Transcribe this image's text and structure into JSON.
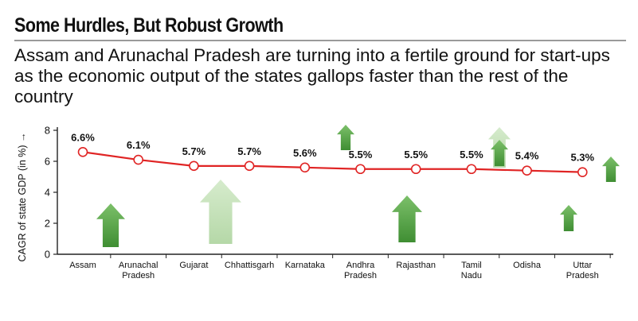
{
  "header": {
    "title": "Some Hurdles, But Robust Growth",
    "subtitle": "Assam and Arunachal Pradesh are turning into a fertile ground for start-ups as the economic output of the states gallops faster than the rest of the country"
  },
  "chart_data": {
    "type": "line",
    "title": "Some Hurdles, But Robust Growth",
    "ylabel": "CAGR of state GDP (in %) →",
    "xlabel": "",
    "ylim": [
      0,
      8
    ],
    "yticks": [
      "0",
      "2",
      "4",
      "6",
      "8"
    ],
    "categories": [
      [
        "Assam"
      ],
      [
        "Arunachal",
        "Pradesh"
      ],
      [
        "Gujarat"
      ],
      [
        "Chhattisgarh"
      ],
      [
        "Karnataka"
      ],
      [
        "Andhra",
        "Pradesh"
      ],
      [
        "Rajasthan"
      ],
      [
        "Tamil",
        "Nadu"
      ],
      [
        "Odisha"
      ],
      [
        "Uttar",
        "Pradesh"
      ]
    ],
    "values": [
      6.6,
      6.1,
      5.7,
      5.7,
      5.6,
      5.5,
      5.5,
      5.5,
      5.4,
      5.3
    ],
    "data_labels": [
      "6.6%",
      "6.1%",
      "5.7%",
      "5.7%",
      "5.6%",
      "5.5%",
      "5.5%",
      "5.5%",
      "5.4%",
      "5.3%"
    ],
    "grid": false,
    "colors": {
      "line": "#e02424",
      "marker_fill": "#ffffff",
      "arrow_dark": "#58a447",
      "arrow_light": "#b6d9a8",
      "axis": "#222222"
    },
    "decorations": "green-arrows"
  }
}
